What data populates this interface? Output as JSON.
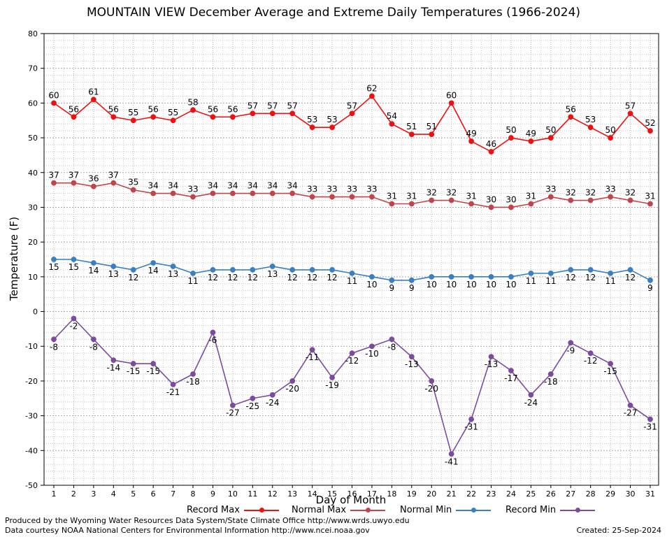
{
  "chart_data": {
    "type": "line",
    "title": "MOUNTAIN VIEW December Average and Extreme Daily Temperatures (1966-2024)",
    "xlabel": "Day of Month",
    "ylabel": "Temperature (F)",
    "x": [
      1,
      2,
      3,
      4,
      5,
      6,
      7,
      8,
      9,
      10,
      11,
      12,
      13,
      14,
      15,
      16,
      17,
      18,
      19,
      20,
      21,
      22,
      23,
      24,
      25,
      26,
      27,
      28,
      29,
      30,
      31
    ],
    "ylim": [
      -50,
      80
    ],
    "yticks": [
      -50,
      -40,
      -30,
      -20,
      -10,
      0,
      10,
      20,
      30,
      40,
      50,
      60,
      70,
      80
    ],
    "grid": true,
    "legend_position": "bottom",
    "series": [
      {
        "name": "Record Max",
        "color": "#ee1111",
        "label_position": "above",
        "values": [
          60,
          56,
          61,
          56,
          55,
          56,
          55,
          58,
          56,
          56,
          57,
          57,
          57,
          53,
          53,
          57,
          62,
          54,
          51,
          51,
          60,
          49,
          46,
          50,
          49,
          50,
          56,
          53,
          50,
          57,
          52
        ]
      },
      {
        "name": "Normal Max",
        "color": "#c0444c",
        "label_position": "above",
        "values": [
          37,
          37,
          36,
          37,
          35,
          34,
          34,
          33,
          34,
          34,
          34,
          34,
          34,
          33,
          33,
          33,
          33,
          31,
          31,
          32,
          32,
          31,
          30,
          30,
          31,
          33,
          32,
          32,
          33,
          32,
          31
        ]
      },
      {
        "name": "Normal Min",
        "color": "#3a7fc1",
        "label_position": "below",
        "values": [
          15,
          15,
          14,
          13,
          12,
          14,
          13,
          11,
          12,
          12,
          12,
          13,
          12,
          12,
          12,
          11,
          10,
          9,
          9,
          10,
          10,
          10,
          10,
          10,
          11,
          11,
          12,
          12,
          11,
          12,
          9
        ]
      },
      {
        "name": "Record Min",
        "color": "#7b4c9e",
        "label_position": "below",
        "values": [
          -8,
          -2,
          -8,
          -14,
          -15,
          -15,
          -21,
          -18,
          -6,
          -27,
          -25,
          -24,
          -20,
          -11,
          -19,
          -12,
          -10,
          -8,
          -13,
          -20,
          -41,
          -31,
          -13,
          -17,
          -24,
          -18,
          -9,
          -12,
          -15,
          -27,
          -31
        ]
      }
    ]
  },
  "credits": {
    "line1": "Produced by the Wyoming Water Resources Data System/State Climate Office http://www.wrds.uwyo.edu",
    "line2": "Data courtesy NOAA National Centers for Environmental Information http://www.ncei.noaa.gov",
    "created": "Created:  25-Sep-2024"
  }
}
